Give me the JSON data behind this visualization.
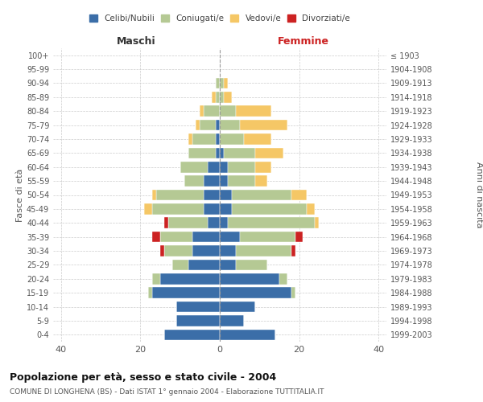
{
  "age_groups": [
    "0-4",
    "5-9",
    "10-14",
    "15-19",
    "20-24",
    "25-29",
    "30-34",
    "35-39",
    "40-44",
    "45-49",
    "50-54",
    "55-59",
    "60-64",
    "65-69",
    "70-74",
    "75-79",
    "80-84",
    "85-89",
    "90-94",
    "95-99",
    "100+"
  ],
  "birth_years": [
    "1999-2003",
    "1994-1998",
    "1989-1993",
    "1984-1988",
    "1979-1983",
    "1974-1978",
    "1969-1973",
    "1964-1968",
    "1959-1963",
    "1954-1958",
    "1949-1953",
    "1944-1948",
    "1939-1943",
    "1934-1938",
    "1929-1933",
    "1924-1928",
    "1919-1923",
    "1914-1918",
    "1909-1913",
    "1904-1908",
    "≤ 1903"
  ],
  "maschi": {
    "celibi": [
      14,
      11,
      11,
      17,
      15,
      8,
      7,
      7,
      3,
      4,
      4,
      4,
      3,
      1,
      1,
      1,
      0,
      0,
      0,
      0,
      0
    ],
    "coniugati": [
      0,
      0,
      0,
      1,
      2,
      4,
      7,
      8,
      10,
      13,
      12,
      5,
      7,
      7,
      6,
      4,
      4,
      1,
      1,
      0,
      0
    ],
    "vedovi": [
      0,
      0,
      0,
      0,
      0,
      0,
      0,
      0,
      0,
      2,
      1,
      0,
      0,
      0,
      1,
      1,
      1,
      1,
      0,
      0,
      0
    ],
    "divorziati": [
      0,
      0,
      0,
      0,
      0,
      0,
      1,
      2,
      1,
      0,
      0,
      0,
      0,
      0,
      0,
      0,
      0,
      0,
      0,
      0,
      0
    ]
  },
  "femmine": {
    "nubili": [
      14,
      6,
      9,
      18,
      15,
      4,
      4,
      5,
      2,
      3,
      3,
      2,
      2,
      1,
      0,
      0,
      0,
      0,
      0,
      0,
      0
    ],
    "coniugate": [
      0,
      0,
      0,
      1,
      2,
      8,
      14,
      14,
      22,
      19,
      15,
      7,
      7,
      8,
      6,
      5,
      4,
      1,
      1,
      0,
      0
    ],
    "vedove": [
      0,
      0,
      0,
      0,
      0,
      0,
      0,
      0,
      1,
      2,
      4,
      3,
      4,
      7,
      7,
      12,
      9,
      2,
      1,
      0,
      0
    ],
    "divorziate": [
      0,
      0,
      0,
      0,
      0,
      0,
      1,
      2,
      0,
      0,
      0,
      0,
      0,
      0,
      0,
      0,
      0,
      0,
      0,
      0,
      0
    ]
  },
  "colors": {
    "celibi": "#3B6EA8",
    "coniugati": "#B5C994",
    "vedovi": "#F5C766",
    "divorziati": "#CC2222"
  },
  "xlim": 42,
  "title": "Popolazione per età, sesso e stato civile - 2004",
  "subtitle": "COMUNE DI LONGHENA (BS) - Dati ISTAT 1° gennaio 2004 - Elaborazione TUTTITALIA.IT",
  "ylabel_left": "Fasce di età",
  "ylabel_right": "Anni di nascita",
  "xlabel_maschi": "Maschi",
  "xlabel_femmine": "Femmine",
  "bg_color": "#FFFFFF",
  "grid_color": "#CCCCCC",
  "legend": [
    "Celibi/Nubili",
    "Coniugati/e",
    "Vedovi/e",
    "Divorziati/e"
  ]
}
